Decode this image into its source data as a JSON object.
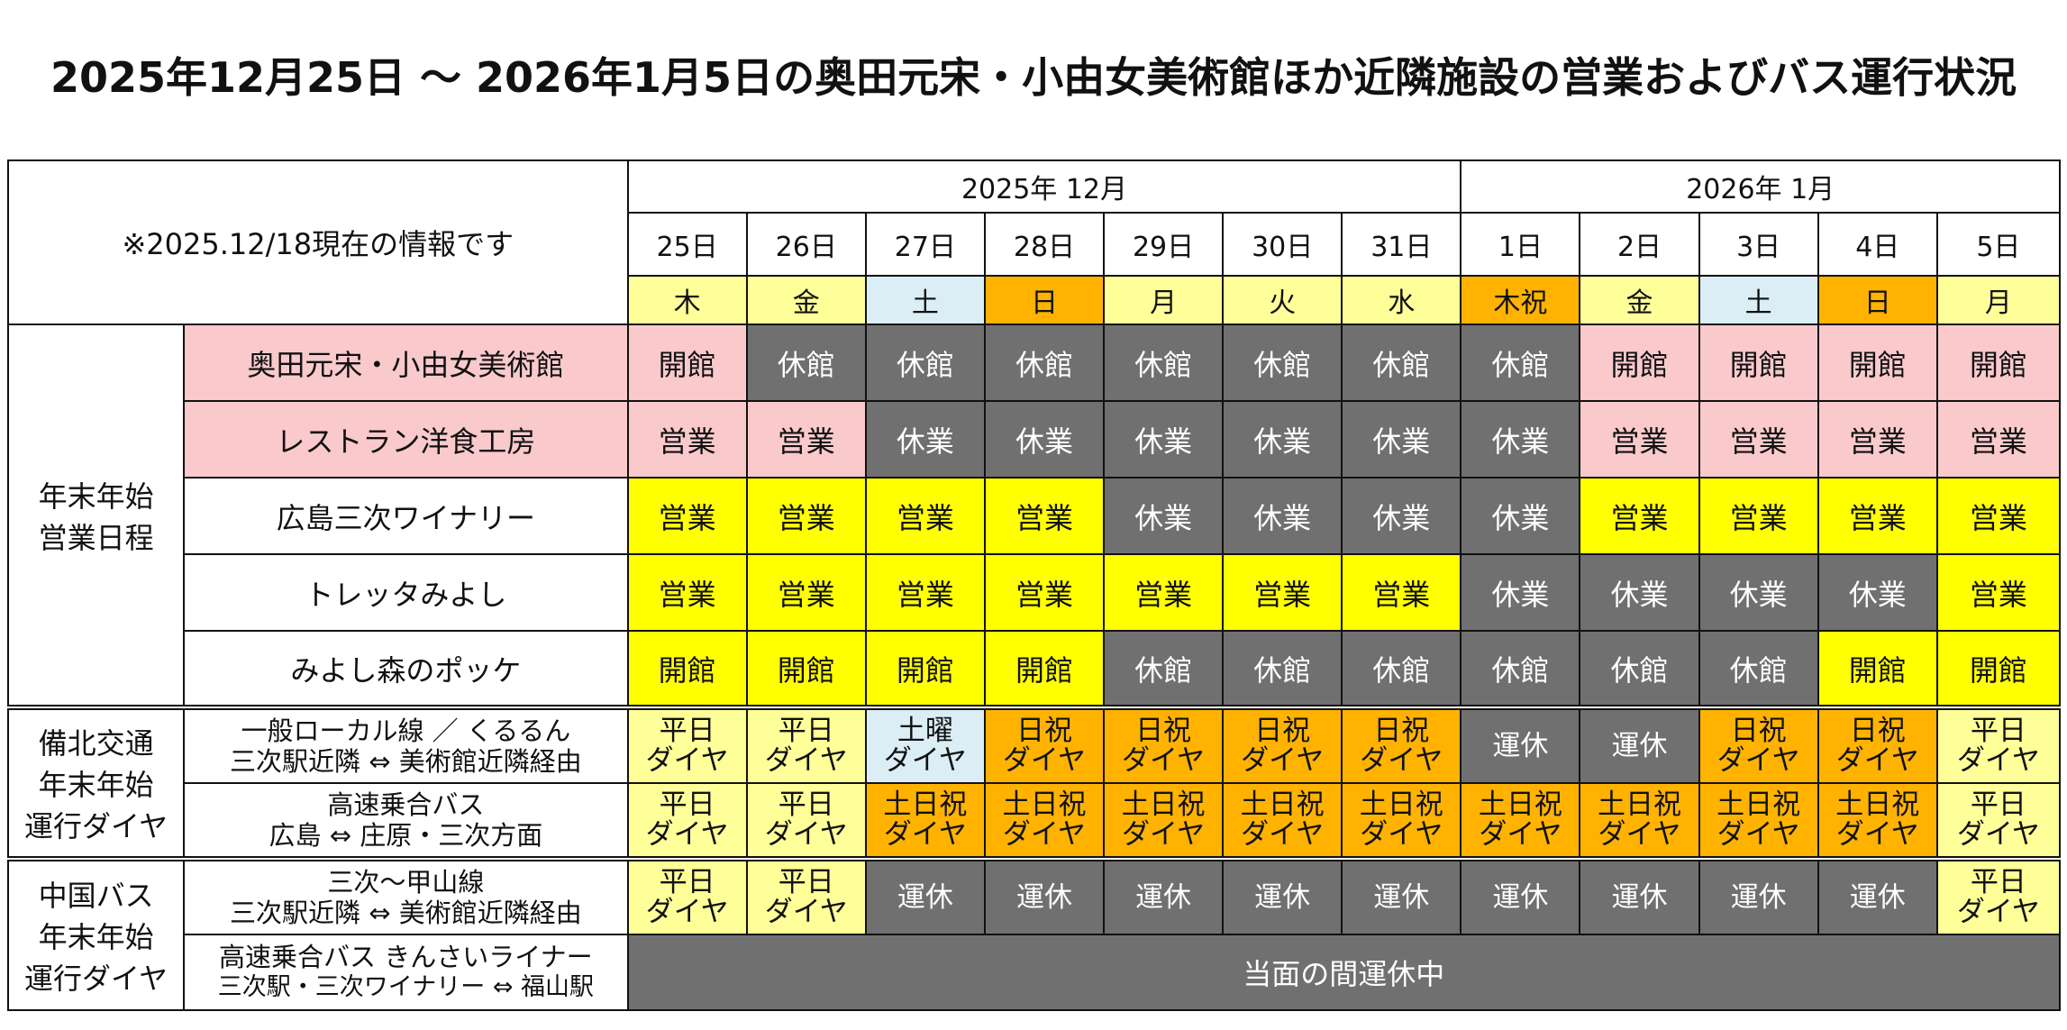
{
  "title": "2025年12月25日 ～ 2026年1月5日の奥田元宋・小由女美術館ほか近隣施設の営業およびバス運行状況",
  "note": "※2025.12/18現在の情報です",
  "months": [
    {
      "label": "2025年 12月",
      "span": 7
    },
    {
      "label": "2026年 1月",
      "span": 5
    }
  ],
  "days": [
    "25日",
    "26日",
    "27日",
    "28日",
    "29日",
    "30日",
    "31日",
    "1日",
    "2日",
    "3日",
    "4日",
    "5日"
  ],
  "weekdays": [
    {
      "label": "木",
      "color": "#ffff99"
    },
    {
      "label": "金",
      "color": "#ffff99"
    },
    {
      "label": "土",
      "color": "#dbeef6"
    },
    {
      "label": "日",
      "color": "#ffb300"
    },
    {
      "label": "月",
      "color": "#ffff99"
    },
    {
      "label": "火",
      "color": "#ffff99"
    },
    {
      "label": "水",
      "color": "#ffff99"
    },
    {
      "label": "木祝",
      "color": "#ffb300"
    },
    {
      "label": "金",
      "color": "#ffff99"
    },
    {
      "label": "土",
      "color": "#dbeef6"
    },
    {
      "label": "日",
      "color": "#ffb300"
    },
    {
      "label": "月",
      "color": "#ffff99"
    }
  ],
  "colors": {
    "pink": "#f9c9cc",
    "gray": "#707070",
    "yellow": "#ffff00",
    "light_yellow": "#ffff99",
    "orange": "#ffb300",
    "light_blue": "#dbeef6"
  },
  "facility_group": {
    "label_lines": [
      "年末年始",
      "営業日程"
    ],
    "rows": [
      {
        "name": "奥田元宋・小由女美術館",
        "cells": [
          [
            "開館",
            "pink"
          ],
          [
            "休館",
            "gray"
          ],
          [
            "休館",
            "gray"
          ],
          [
            "休館",
            "gray"
          ],
          [
            "休館",
            "gray"
          ],
          [
            "休館",
            "gray"
          ],
          [
            "休館",
            "gray"
          ],
          [
            "休館",
            "gray"
          ],
          [
            "開館",
            "pink"
          ],
          [
            "開館",
            "pink"
          ],
          [
            "開館",
            "pink"
          ],
          [
            "開館",
            "pink"
          ]
        ]
      },
      {
        "name": "レストラン洋食工房",
        "cells": [
          [
            "営業",
            "pink"
          ],
          [
            "営業",
            "pink"
          ],
          [
            "休業",
            "gray"
          ],
          [
            "休業",
            "gray"
          ],
          [
            "休業",
            "gray"
          ],
          [
            "休業",
            "gray"
          ],
          [
            "休業",
            "gray"
          ],
          [
            "休業",
            "gray"
          ],
          [
            "営業",
            "pink"
          ],
          [
            "営業",
            "pink"
          ],
          [
            "営業",
            "pink"
          ],
          [
            "営業",
            "pink"
          ]
        ]
      },
      {
        "name": "広島三次ワイナリー",
        "cells": [
          [
            "営業",
            "yellow"
          ],
          [
            "営業",
            "yellow"
          ],
          [
            "営業",
            "yellow"
          ],
          [
            "営業",
            "yellow"
          ],
          [
            "休業",
            "gray"
          ],
          [
            "休業",
            "gray"
          ],
          [
            "休業",
            "gray"
          ],
          [
            "休業",
            "gray"
          ],
          [
            "営業",
            "yellow"
          ],
          [
            "営業",
            "yellow"
          ],
          [
            "営業",
            "yellow"
          ],
          [
            "営業",
            "yellow"
          ]
        ]
      },
      {
        "name": "トレッタみよし",
        "cells": [
          [
            "営業",
            "yellow"
          ],
          [
            "営業",
            "yellow"
          ],
          [
            "営業",
            "yellow"
          ],
          [
            "営業",
            "yellow"
          ],
          [
            "営業",
            "yellow"
          ],
          [
            "営業",
            "yellow"
          ],
          [
            "営業",
            "yellow"
          ],
          [
            "休業",
            "gray"
          ],
          [
            "休業",
            "gray"
          ],
          [
            "休業",
            "gray"
          ],
          [
            "休業",
            "gray"
          ],
          [
            "営業",
            "yellow"
          ]
        ]
      },
      {
        "name": "みよし森のポッケ",
        "cells": [
          [
            "開館",
            "yellow"
          ],
          [
            "開館",
            "yellow"
          ],
          [
            "開館",
            "yellow"
          ],
          [
            "開館",
            "yellow"
          ],
          [
            "休館",
            "gray"
          ],
          [
            "休館",
            "gray"
          ],
          [
            "休館",
            "gray"
          ],
          [
            "休館",
            "gray"
          ],
          [
            "休館",
            "gray"
          ],
          [
            "休館",
            "gray"
          ],
          [
            "開館",
            "yellow"
          ],
          [
            "開館",
            "yellow"
          ]
        ]
      }
    ]
  },
  "bihoku_group": {
    "label_lines": [
      "備北交通",
      "年末年始",
      "運行ダイヤ"
    ],
    "rows": [
      {
        "name_lines": [
          "一般ローカル線 ／ くるるん",
          "三次駅近隣 ⇔ 美術館近隣経由"
        ],
        "cells": [
          [
            [
              "平日",
              "ダイヤ"
            ],
            "light_yellow"
          ],
          [
            [
              "平日",
              "ダイヤ"
            ],
            "light_yellow"
          ],
          [
            [
              "土曜",
              "ダイヤ"
            ],
            "light_blue"
          ],
          [
            [
              "日祝",
              "ダイヤ"
            ],
            "orange"
          ],
          [
            [
              "日祝",
              "ダイヤ"
            ],
            "orange"
          ],
          [
            [
              "日祝",
              "ダイヤ"
            ],
            "orange"
          ],
          [
            [
              "日祝",
              "ダイヤ"
            ],
            "orange"
          ],
          [
            [
              "運休"
            ],
            "gray"
          ],
          [
            [
              "運休"
            ],
            "gray"
          ],
          [
            [
              "日祝",
              "ダイヤ"
            ],
            "orange"
          ],
          [
            [
              "日祝",
              "ダイヤ"
            ],
            "orange"
          ],
          [
            [
              "平日",
              "ダイヤ"
            ],
            "light_yellow"
          ]
        ]
      },
      {
        "name_lines": [
          "高速乗合バス",
          "広島 ⇔ 庄原・三次方面"
        ],
        "cells": [
          [
            [
              "平日",
              "ダイヤ"
            ],
            "light_yellow"
          ],
          [
            [
              "平日",
              "ダイヤ"
            ],
            "light_yellow"
          ],
          [
            [
              "土日祝",
              "ダイヤ"
            ],
            "orange"
          ],
          [
            [
              "土日祝",
              "ダイヤ"
            ],
            "orange"
          ],
          [
            [
              "土日祝",
              "ダイヤ"
            ],
            "orange"
          ],
          [
            [
              "土日祝",
              "ダイヤ"
            ],
            "orange"
          ],
          [
            [
              "土日祝",
              "ダイヤ"
            ],
            "orange"
          ],
          [
            [
              "土日祝",
              "ダイヤ"
            ],
            "orange"
          ],
          [
            [
              "土日祝",
              "ダイヤ"
            ],
            "orange"
          ],
          [
            [
              "土日祝",
              "ダイヤ"
            ],
            "orange"
          ],
          [
            [
              "土日祝",
              "ダイヤ"
            ],
            "orange"
          ],
          [
            [
              "平日",
              "ダイヤ"
            ],
            "light_yellow"
          ]
        ]
      }
    ]
  },
  "chugoku_group": {
    "label_lines": [
      "中国バス",
      "年末年始",
      "運行ダイヤ"
    ],
    "rows": [
      {
        "name_lines": [
          "三次～甲山線",
          "三次駅近隣 ⇔ 美術館近隣経由"
        ],
        "cells": [
          [
            [
              "平日",
              "ダイヤ"
            ],
            "light_yellow"
          ],
          [
            [
              "平日",
              "ダイヤ"
            ],
            "light_yellow"
          ],
          [
            [
              "運休"
            ],
            "gray"
          ],
          [
            [
              "運休"
            ],
            "gray"
          ],
          [
            [
              "運休"
            ],
            "gray"
          ],
          [
            [
              "運休"
            ],
            "gray"
          ],
          [
            [
              "運休"
            ],
            "gray"
          ],
          [
            [
              "運休"
            ],
            "gray"
          ],
          [
            [
              "運休"
            ],
            "gray"
          ],
          [
            [
              "運休"
            ],
            "gray"
          ],
          [
            [
              "運休"
            ],
            "gray"
          ],
          [
            [
              "平日",
              "ダイヤ"
            ],
            "light_yellow"
          ]
        ]
      },
      {
        "name_lines": [
          "高速乗合バス きんさいライナー",
          "三次駅・三次ワイナリー ⇔ 福山駅"
        ],
        "suspended": "当面の間運休中"
      }
    ]
  }
}
